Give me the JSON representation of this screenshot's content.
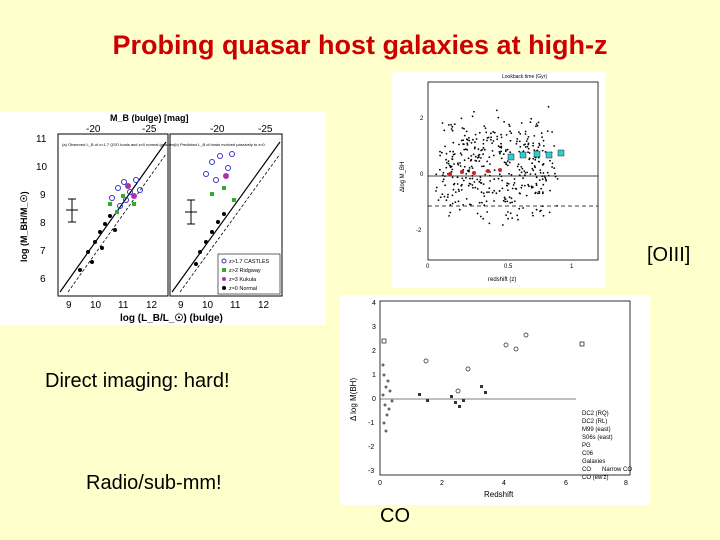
{
  "slide": {
    "title": "Probing quasar host galaxies at high-z",
    "label_oiii": "[OIII]",
    "label_direct": "Direct imaging: hard!",
    "label_radio": "Radio/sub-mm!",
    "label_co": "CO"
  },
  "fig_left": {
    "top_label": "M_B (bulge) [mag]",
    "top_ticks": [
      "-20",
      "-25",
      "-20",
      "-25"
    ],
    "y_ticks": [
      "11",
      "10",
      "9",
      "8",
      "7",
      "6"
    ],
    "x_ticks": [
      "9",
      "10",
      "11",
      "12",
      "9",
      "10",
      "11",
      "12"
    ],
    "ylabel": "log (M_BH/M_☉)",
    "xlabel": "log (L_B/L_☉) (bulge)",
    "panel_a_note": "(a) Observed L_B of z>1.7 QSO hosts and z≈0 normal galaxies",
    "panel_b_note": "(b) Predicted L_B of hosts evolved passively to z≈0",
    "legend": [
      "z>1.7 CASTLES",
      "z>2 Ridgway",
      "z≈3 Kukula",
      "z≈0 Normal"
    ]
  },
  "fig_oiii": {
    "top_label": "Lookback time (Gyr)",
    "ylabel": "Δlog M_BH",
    "xlabel": "redshift (z)",
    "y_ticks": [
      "2",
      "0",
      "-2"
    ],
    "x_ticks": [
      "0",
      "0.5",
      "1"
    ]
  },
  "fig_co": {
    "ylabel": "Δ log M(BH)",
    "xlabel": "Redshift",
    "y_ticks": [
      "4",
      "3",
      "2",
      "1",
      "0",
      "-1",
      "-2",
      "-3"
    ],
    "x_ticks": [
      "0",
      "2",
      "4",
      "6",
      "8"
    ],
    "legend": [
      "DC2 (RQ)",
      "DC2 (RL)",
      "M99 (east)",
      "S06s (east)",
      "PG",
      "C06",
      "Galaxies",
      "CO",
      "Narrow CO",
      "CO (ew'z)"
    ]
  }
}
